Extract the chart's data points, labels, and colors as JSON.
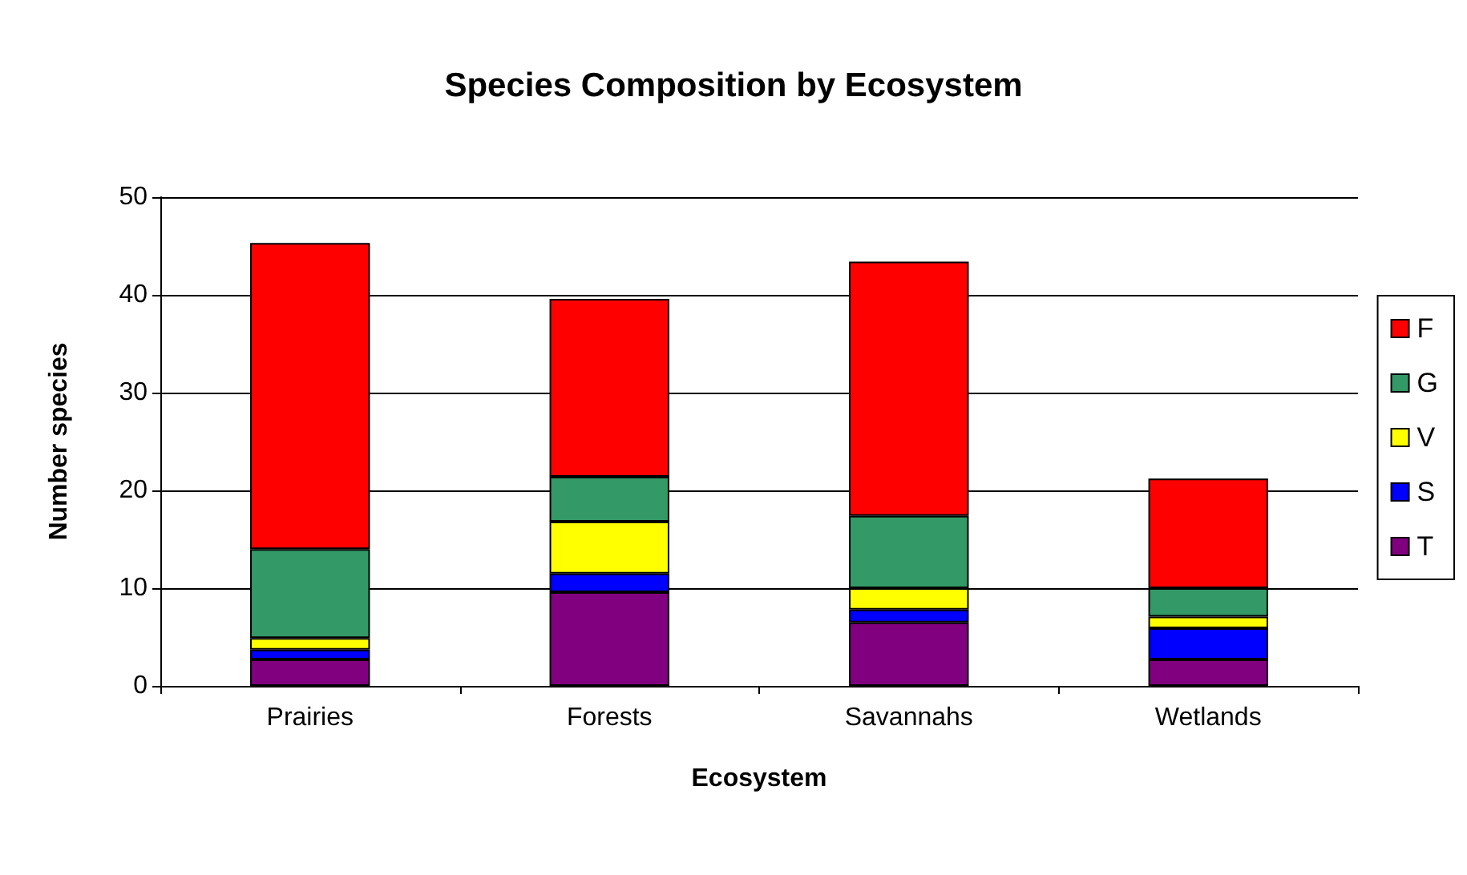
{
  "chart_data": {
    "type": "bar",
    "title": "Species Composition by Ecosystem",
    "xlabel": "Ecosystem",
    "ylabel": "Number species",
    "categories": [
      "Prairies",
      "Forests",
      "Savannahs",
      "Wetlands"
    ],
    "stacked": true,
    "series": [
      {
        "name": "T",
        "color": "#800080",
        "values": [
          2.7,
          9.6,
          6.5,
          2.7
        ]
      },
      {
        "name": "S",
        "color": "#0000ff",
        "values": [
          1.0,
          1.9,
          1.3,
          3.2
        ]
      },
      {
        "name": "V",
        "color": "#ffff00",
        "values": [
          1.2,
          5.3,
          2.2,
          1.2
        ]
      },
      {
        "name": "G",
        "color": "#339966",
        "values": [
          9.1,
          4.6,
          7.4,
          2.9
        ]
      },
      {
        "name": "F",
        "color": "#ff0000",
        "values": [
          31.3,
          18.2,
          26.0,
          11.2
        ]
      }
    ],
    "ylim": [
      0,
      50
    ],
    "yticks": [
      0,
      10,
      20,
      30,
      40,
      50
    ],
    "grid": "y",
    "legend": "right"
  }
}
